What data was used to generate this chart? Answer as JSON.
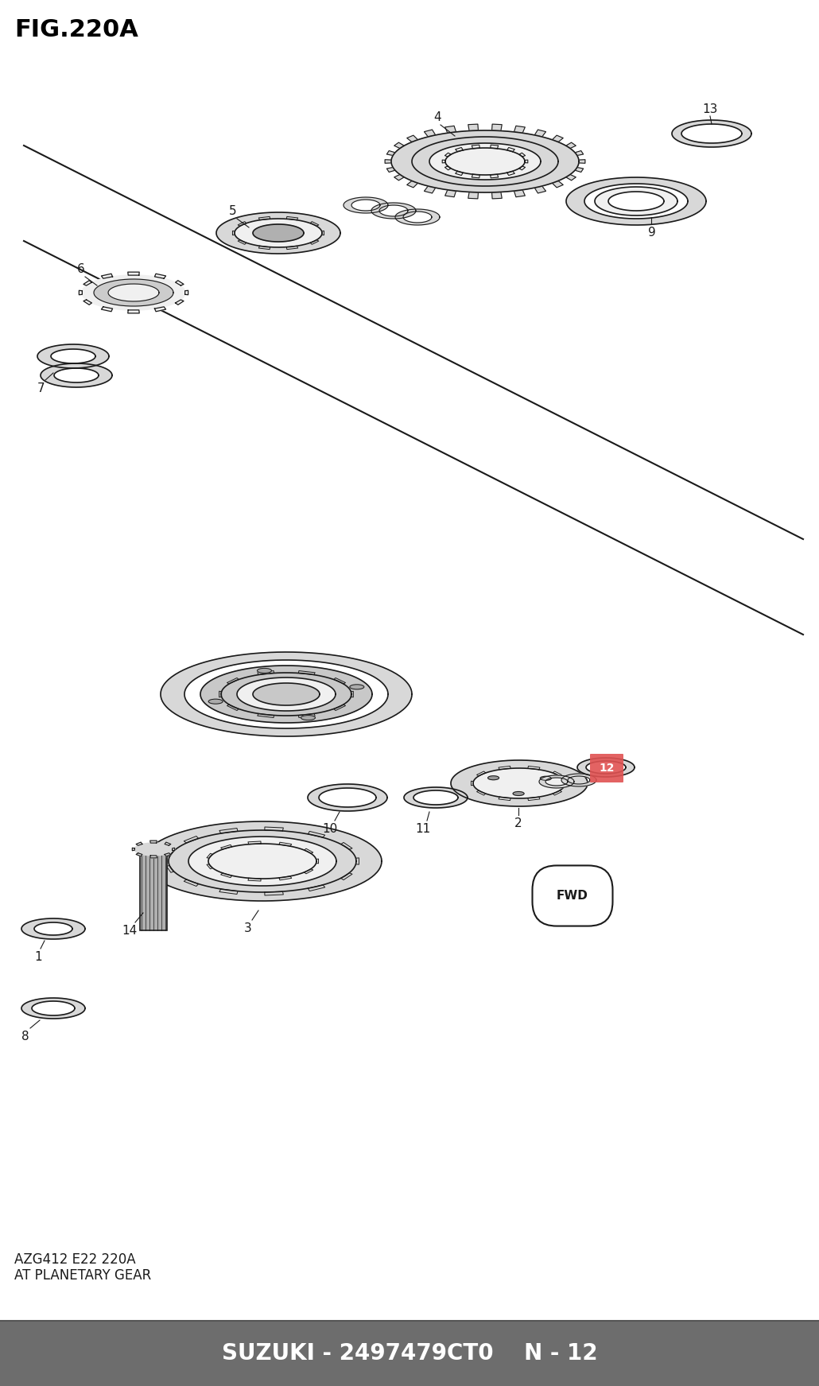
{
  "title": "FIG.220A",
  "subtitle1": "AZG412 E22 220A",
  "subtitle2": "AT PLANETARY GEAR",
  "footer_text": "SUZUKI - 2497479CT0    N - 12",
  "footer_bg": "#6d6d6d",
  "footer_text_color": "#ffffff",
  "bg_color": "#ffffff",
  "title_fontsize": 22,
  "part_label_12_bg": "#e05252",
  "c_dark": "#1a1a1a",
  "fill_light": "#f0f0f0",
  "fill_mid": "#d8d8d8",
  "fill_dark": "#b0b0b0",
  "fill_cc": "#cccccc",
  "fill_c8": "#c8c8c8",
  "fill_aa": "#aaaaaa",
  "fill_99": "#999999"
}
